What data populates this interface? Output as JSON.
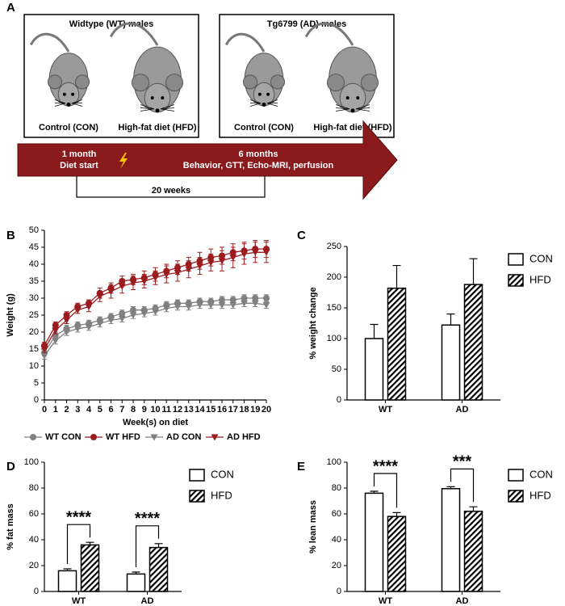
{
  "diagram": {
    "panel_label": "A",
    "groups": [
      {
        "title": "Widtype (WT) males",
        "mice": [
          "Control (CON)",
          "High-fat diet (HFD)"
        ]
      },
      {
        "title": "Tg6799 (AD) males",
        "mice": [
          "Control (CON)",
          "High-fat diet (HFD)"
        ]
      }
    ],
    "timeline": {
      "start": [
        "1 month",
        "Diet start"
      ],
      "end": [
        "6 months",
        "Behavior, GTT, Echo-MRI, perfusion"
      ],
      "duration": "20 weeks"
    }
  },
  "chart_data": [
    {
      "panel_label": "B",
      "type": "line",
      "x_label": "Week(s) on diet",
      "y_label": "Weight (g)",
      "x": [
        0,
        1,
        2,
        3,
        4,
        5,
        6,
        7,
        8,
        9,
        10,
        11,
        12,
        13,
        14,
        15,
        16,
        17,
        18,
        19,
        20
      ],
      "xlim": [
        0,
        20
      ],
      "xticks": [
        0,
        1,
        2,
        3,
        4,
        5,
        6,
        7,
        8,
        9,
        10,
        11,
        12,
        13,
        14,
        15,
        16,
        17,
        18,
        19,
        20
      ],
      "ylim": [
        0,
        50
      ],
      "yticks": [
        0,
        5,
        10,
        15,
        20,
        25,
        30,
        35,
        40,
        45,
        50
      ],
      "series": [
        {
          "name": "WT CON",
          "color": "#808080",
          "marker": "circle",
          "values": [
            14,
            19,
            21,
            22,
            22.5,
            23.5,
            24.5,
            25.5,
            26.5,
            26.5,
            27,
            28,
            28.5,
            28.5,
            29,
            29,
            29.5,
            29.5,
            30,
            30,
            30
          ],
          "errors": [
            1,
            1,
            1,
            1,
            1,
            1,
            1,
            1,
            1,
            1,
            1,
            1,
            1,
            1,
            1,
            1,
            1,
            1,
            1,
            1,
            1
          ]
        },
        {
          "name": "WT HFD",
          "color": "#9b1b1e",
          "marker": "circle",
          "values": [
            16,
            22,
            25,
            27.5,
            28.5,
            31.5,
            33,
            35,
            35.5,
            36,
            37,
            38,
            39,
            40,
            41,
            42,
            42.5,
            43.5,
            44,
            44.5,
            44.5
          ],
          "errors": [
            1,
            1,
            1,
            1,
            1,
            1.5,
            1.5,
            1.5,
            1.5,
            2,
            2,
            2,
            2,
            2,
            2.5,
            2.5,
            2.5,
            2.5,
            2.5,
            2.5,
            2.5
          ]
        },
        {
          "name": "AD CON",
          "color": "#808080",
          "marker": "triangle-down",
          "values": [
            13,
            17.5,
            20,
            21,
            21.5,
            22.5,
            23.5,
            24,
            25,
            25.5,
            26,
            27,
            27.5,
            27.5,
            28,
            28,
            28,
            28,
            28.5,
            28.5,
            28
          ],
          "errors": [
            1,
            1,
            1,
            1,
            1,
            1,
            1,
            1,
            1,
            1,
            1,
            1,
            1,
            1,
            1,
            1,
            1,
            1,
            1,
            1,
            1
          ]
        },
        {
          "name": "AD HFD",
          "color": "#9b1b1e",
          "marker": "triangle-down",
          "values": [
            15,
            20.5,
            23.5,
            26.5,
            27.5,
            30.5,
            32,
            33.5,
            34.5,
            35,
            36,
            37,
            37.5,
            38.5,
            39.5,
            40.5,
            41,
            42,
            43,
            43.5,
            43.5
          ],
          "errors": [
            1,
            1,
            1,
            1,
            1.5,
            1.5,
            2,
            2,
            2,
            2,
            2,
            2.5,
            2.5,
            2.5,
            2.5,
            2.5,
            3,
            3,
            3,
            3,
            3
          ]
        }
      ]
    },
    {
      "panel_label": "C",
      "type": "bar",
      "y_label": "% weight change",
      "categories": [
        "WT",
        "AD"
      ],
      "ylim": [
        0,
        250
      ],
      "yticks": [
        0,
        50,
        100,
        150,
        200,
        250
      ],
      "series": [
        {
          "name": "CON",
          "color": "#ffffff",
          "pattern": "solid",
          "values": [
            100,
            122
          ],
          "errors": [
            23,
            18
          ]
        },
        {
          "name": "HFD",
          "color": "#ffffff",
          "pattern": "hatch",
          "values": [
            182,
            188
          ],
          "errors": [
            37,
            42
          ]
        }
      ]
    },
    {
      "panel_label": "D",
      "type": "bar",
      "y_label": "% fat mass",
      "categories": [
        "WT",
        "AD"
      ],
      "ylim": [
        0,
        100
      ],
      "yticks": [
        0,
        20,
        40,
        60,
        80,
        100
      ],
      "annotations": [
        "****",
        "****"
      ],
      "series": [
        {
          "name": "CON",
          "color": "#ffffff",
          "pattern": "solid",
          "values": [
            16,
            13.5
          ],
          "errors": [
            1.5,
            1.5
          ]
        },
        {
          "name": "HFD",
          "color": "#ffffff",
          "pattern": "hatch",
          "values": [
            36,
            34
          ],
          "errors": [
            2,
            3
          ]
        }
      ]
    },
    {
      "panel_label": "E",
      "type": "bar",
      "y_label": "% lean mass",
      "categories": [
        "WT",
        "AD"
      ],
      "ylim": [
        0,
        100
      ],
      "yticks": [
        0,
        20,
        40,
        60,
        80,
        100
      ],
      "annotations": [
        "****",
        "***"
      ],
      "series": [
        {
          "name": "CON",
          "color": "#ffffff",
          "pattern": "solid",
          "values": [
            76,
            79.5
          ],
          "errors": [
            1.5,
            1.5
          ]
        },
        {
          "name": "HFD",
          "color": "#ffffff",
          "pattern": "hatch",
          "values": [
            58,
            62
          ],
          "errors": [
            3,
            3.5
          ]
        }
      ]
    }
  ]
}
